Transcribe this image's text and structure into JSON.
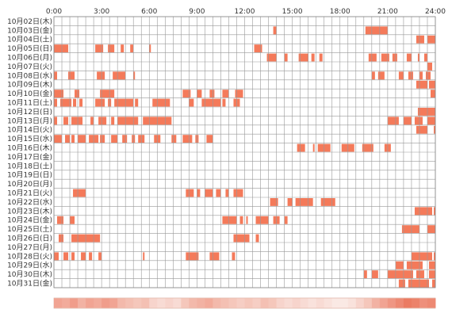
{
  "chart_data": {
    "type": "timeline",
    "title": "",
    "xlabel": "",
    "ylabel": "",
    "x_unit": "hour",
    "xlim": [
      0,
      24
    ],
    "x_ticks": [
      "0:00",
      "3:00",
      "6:00",
      "9:00",
      "12:00",
      "15:00",
      "18:00",
      "21:00",
      "24:00"
    ],
    "grid": true,
    "bar_color": "#f47a5a",
    "grid_color": "#999999",
    "days": [
      {
        "label": "10月02日(木)",
        "intervals": []
      },
      {
        "label": "10月03日(金)",
        "intervals": [
          [
            13.8,
            14.0
          ],
          [
            19.6,
            21.0
          ]
        ]
      },
      {
        "label": "10月04日(土)",
        "intervals": [
          [
            22.8,
            23.3
          ],
          [
            23.5,
            24.0
          ]
        ]
      },
      {
        "label": "10月05日(日)",
        "intervals": [
          [
            0.0,
            0.9
          ],
          [
            2.6,
            3.1
          ],
          [
            3.4,
            3.8
          ],
          [
            4.2,
            4.4
          ],
          [
            4.8,
            5.0
          ],
          [
            6.0,
            6.1
          ],
          [
            12.6,
            13.1
          ]
        ]
      },
      {
        "label": "10月06日(月)",
        "intervals": [
          [
            13.4,
            14.0
          ],
          [
            14.5,
            14.7
          ],
          [
            15.4,
            16.0
          ],
          [
            16.2,
            16.4
          ],
          [
            16.7,
            16.9
          ],
          [
            19.8,
            20.3
          ],
          [
            20.6,
            21.1
          ],
          [
            21.3,
            21.6
          ],
          [
            22.2,
            22.5
          ],
          [
            22.9,
            23.0
          ],
          [
            23.3,
            23.5
          ]
        ]
      },
      {
        "label": "10月07日(火)",
        "intervals": [
          [
            23.5,
            23.8
          ]
        ]
      },
      {
        "label": "10月08日(水)",
        "intervals": [
          [
            0.0,
            0.2
          ],
          [
            0.9,
            1.3
          ],
          [
            2.7,
            3.2
          ],
          [
            3.7,
            4.5
          ],
          [
            5.0,
            5.1
          ],
          [
            20.0,
            20.2
          ],
          [
            20.4,
            20.8
          ],
          [
            21.7,
            22.0
          ],
          [
            22.3,
            22.6
          ],
          [
            23.0,
            23.2
          ],
          [
            23.4,
            23.7
          ]
        ]
      },
      {
        "label": "10月09日(木)",
        "intervals": [
          [
            22.8,
            23.5
          ],
          [
            23.6,
            24.0
          ]
        ]
      },
      {
        "label": "10月10日(金)",
        "intervals": [
          [
            0.0,
            0.6
          ],
          [
            1.3,
            1.6
          ],
          [
            2.9,
            3.8
          ],
          [
            8.1,
            8.6
          ],
          [
            9.0,
            9.3
          ],
          [
            9.8,
            10.1
          ],
          [
            10.6,
            11.0
          ],
          [
            11.4,
            11.9
          ],
          [
            23.7,
            24.0
          ]
        ]
      },
      {
        "label": "10月11日(土)",
        "intervals": [
          [
            0.0,
            0.2
          ],
          [
            0.4,
            1.1
          ],
          [
            1.2,
            1.4
          ],
          [
            1.6,
            1.8
          ],
          [
            2.6,
            3.2
          ],
          [
            3.4,
            3.6
          ],
          [
            3.8,
            5.0
          ],
          [
            5.1,
            5.3
          ],
          [
            6.2,
            7.3
          ],
          [
            8.5,
            8.8
          ],
          [
            9.3,
            10.5
          ],
          [
            10.6,
            10.8
          ],
          [
            11.3,
            11.7
          ]
        ]
      },
      {
        "label": "10月12日(日)",
        "intervals": [
          [
            22.9,
            24.0
          ]
        ]
      },
      {
        "label": "10月13日(月)",
        "intervals": [
          [
            0.0,
            0.2
          ],
          [
            0.6,
            0.9
          ],
          [
            1.1,
            1.8
          ],
          [
            2.3,
            2.5
          ],
          [
            2.8,
            3.3
          ],
          [
            3.6,
            3.8
          ],
          [
            4.0,
            5.3
          ],
          [
            5.6,
            7.4
          ],
          [
            21.0,
            21.7
          ],
          [
            22.0,
            22.5
          ],
          [
            22.7,
            23.2
          ],
          [
            23.5,
            24.0
          ]
        ]
      },
      {
        "label": "10月14日(火)",
        "intervals": [
          [
            22.8,
            23.5
          ],
          [
            23.9,
            24.0
          ]
        ]
      },
      {
        "label": "10月15日(水)",
        "intervals": [
          [
            0.0,
            0.5
          ],
          [
            0.7,
            1.0
          ],
          [
            1.1,
            1.3
          ],
          [
            1.5,
            2.0
          ],
          [
            2.2,
            2.8
          ],
          [
            2.9,
            3.2
          ],
          [
            3.6,
            4.0
          ],
          [
            4.3,
            4.6
          ],
          [
            4.9,
            5.1
          ],
          [
            5.3,
            5.7
          ],
          [
            6.3,
            6.7
          ],
          [
            7.4,
            7.7
          ],
          [
            8.1,
            8.7
          ],
          [
            8.9,
            9.1
          ],
          [
            9.6,
            10.0
          ]
        ]
      },
      {
        "label": "10月16日(木)",
        "intervals": [
          [
            15.3,
            15.8
          ],
          [
            16.3,
            16.4
          ],
          [
            16.6,
            17.4
          ],
          [
            18.1,
            18.9
          ],
          [
            19.4,
            20.1
          ],
          [
            20.8,
            21.2
          ]
        ]
      },
      {
        "label": "10月17日(金)",
        "intervals": []
      },
      {
        "label": "10月18日(土)",
        "intervals": []
      },
      {
        "label": "10月19日(日)",
        "intervals": []
      },
      {
        "label": "10月20日(月)",
        "intervals": []
      },
      {
        "label": "10月21日(火)",
        "intervals": [
          [
            1.2,
            2.0
          ],
          [
            8.3,
            8.8
          ],
          [
            9.0,
            9.2
          ],
          [
            9.5,
            10.0
          ],
          [
            10.2,
            10.5
          ],
          [
            10.8,
            11.0
          ],
          [
            11.3,
            11.9
          ]
        ]
      },
      {
        "label": "10月22日(水)",
        "intervals": [
          [
            13.6,
            14.1
          ],
          [
            14.7,
            15.0
          ],
          [
            15.2,
            16.3
          ],
          [
            16.8,
            17.7
          ]
        ]
      },
      {
        "label": "10月23日(木)",
        "intervals": [
          [
            22.7,
            23.8
          ],
          [
            23.9,
            24.0
          ]
        ]
      },
      {
        "label": "10月24日(金)",
        "intervals": [
          [
            0.2,
            0.6
          ],
          [
            1.0,
            1.3
          ],
          [
            10.6,
            11.5
          ],
          [
            11.7,
            11.9
          ],
          [
            12.1,
            12.2
          ],
          [
            12.7,
            13.5
          ],
          [
            13.8,
            14.2
          ],
          [
            14.5,
            14.7
          ]
        ]
      },
      {
        "label": "10月25日(土)",
        "intervals": [
          [
            21.9,
            23.0
          ],
          [
            23.5,
            24.0
          ]
        ]
      },
      {
        "label": "10月26日(日)",
        "intervals": [
          [
            0.3,
            0.6
          ],
          [
            1.1,
            2.9
          ],
          [
            11.3,
            12.3
          ],
          [
            12.7,
            12.9
          ]
        ]
      },
      {
        "label": "10月27日(月)",
        "intervals": []
      },
      {
        "label": "10月28日(火)",
        "intervals": [
          [
            0.0,
            0.3
          ],
          [
            0.6,
            0.9
          ],
          [
            1.1,
            1.3
          ],
          [
            1.7,
            2.0
          ],
          [
            2.2,
            2.4
          ],
          [
            2.8,
            3.0
          ],
          [
            5.6,
            5.7
          ],
          [
            8.3,
            9.1
          ],
          [
            9.8,
            10.4
          ],
          [
            11.2,
            11.4
          ],
          [
            22.5,
            23.8
          ],
          [
            23.9,
            24.0
          ]
        ]
      },
      {
        "label": "10月29日(水)",
        "intervals": [
          [
            21.5,
            22.0
          ],
          [
            22.2,
            23.2
          ],
          [
            23.6,
            24.0
          ]
        ]
      },
      {
        "label": "10月30日(木)",
        "intervals": [
          [
            19.5,
            19.7
          ],
          [
            20.0,
            20.4
          ],
          [
            21.0,
            22.6
          ],
          [
            22.8,
            23.3
          ],
          [
            23.6,
            24.0
          ]
        ]
      },
      {
        "label": "10月31日(金)",
        "intervals": [
          [
            21.7,
            22.1
          ],
          [
            22.3,
            23.6
          ],
          [
            23.8,
            24.0
          ]
        ]
      }
    ],
    "summary_strip": {
      "description": "density strip of activity by time of day",
      "base_color": "#f3c0ae",
      "highlight_color": "#e8664a",
      "density_by_half_hour": [
        0.55,
        0.5,
        0.6,
        0.45,
        0.55,
        0.5,
        0.6,
        0.55,
        0.4,
        0.35,
        0.3,
        0.35,
        0.2,
        0.15,
        0.2,
        0.15,
        0.3,
        0.4,
        0.45,
        0.5,
        0.4,
        0.35,
        0.3,
        0.25,
        0.3,
        0.25,
        0.35,
        0.3,
        0.2,
        0.15,
        0.2,
        0.15,
        0.1,
        0.15,
        0.1,
        0.05,
        0.05,
        0.1,
        0.2,
        0.3,
        0.45,
        0.55,
        0.65,
        0.75,
        0.85,
        0.8,
        0.7,
        0.75
      ]
    }
  }
}
